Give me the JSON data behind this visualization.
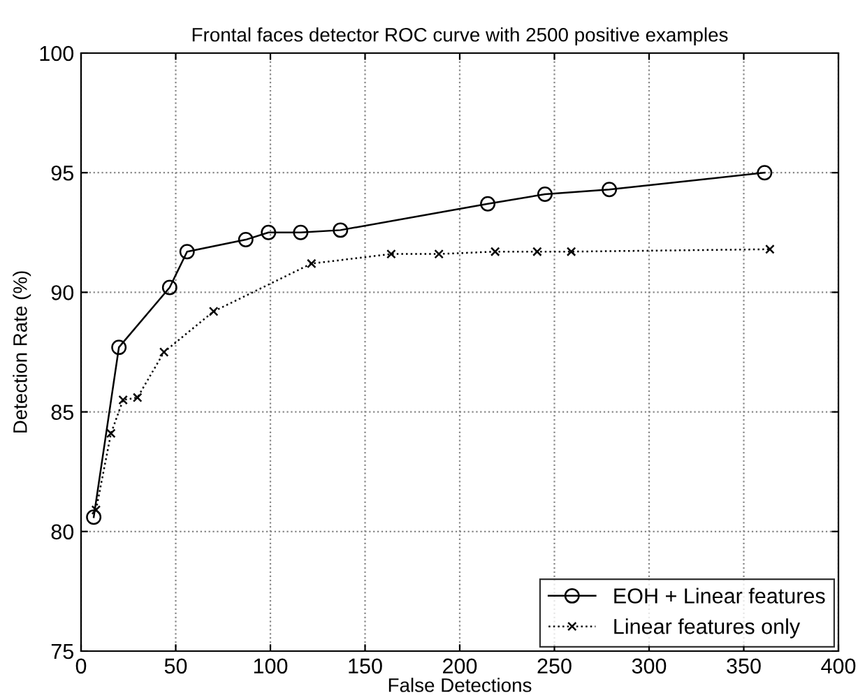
{
  "chart_data": {
    "type": "line",
    "title": "Frontal faces detector ROC curve with 2500 positive examples",
    "xlabel": "False Detections",
    "ylabel": "Detection Rate (%)",
    "xlim": [
      0,
      400
    ],
    "xticks": [
      0,
      50,
      100,
      150,
      200,
      250,
      300,
      350,
      400
    ],
    "ylim": [
      75,
      100
    ],
    "yticks": [
      75,
      80,
      85,
      90,
      95,
      100
    ],
    "grid": true,
    "legend": "bottom right",
    "series": [
      {
        "name": "EOH + Linear features",
        "color": "#000000",
        "marker": "circle",
        "line_style": "solid",
        "x": [
          6.7,
          20,
          46.8,
          56,
          87,
          99,
          116,
          137,
          214.8,
          245,
          279,
          361
        ],
        "values": [
          80.6,
          87.7,
          90.2,
          91.7,
          92.2,
          92.5,
          92.5,
          92.6,
          93.7,
          94.1,
          94.3,
          95.0
        ]
      },
      {
        "name": "Linear features only",
        "color": "#000000",
        "marker": "cross",
        "line_style": "dotted",
        "x": [
          7.9,
          15.8,
          22.2,
          29.8,
          43.8,
          70,
          121.7,
          163.8,
          189,
          218.7,
          240.9,
          258.9,
          363.8
        ],
        "values": [
          80.9,
          84.1,
          85.5,
          85.6,
          87.5,
          89.2,
          91.2,
          91.6,
          91.6,
          91.7,
          91.7,
          91.7,
          91.8
        ]
      }
    ]
  }
}
